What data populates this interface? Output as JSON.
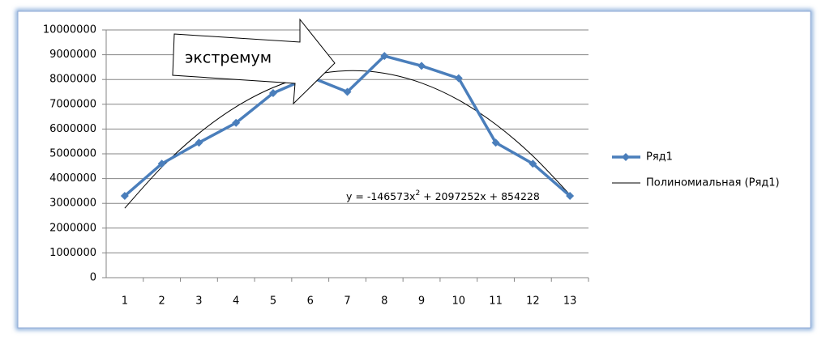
{
  "chart_data": {
    "type": "line",
    "categories": [
      "1",
      "2",
      "3",
      "4",
      "5",
      "6",
      "7",
      "8",
      "9",
      "10",
      "11",
      "12",
      "13"
    ],
    "series": [
      {
        "name": "Ряд1",
        "color": "#4a7ebb",
        "marker": "diamond",
        "values": [
          3300000,
          4600000,
          5450000,
          6250000,
          7450000,
          8100000,
          7500000,
          8950000,
          8550000,
          8050000,
          5450000,
          4600000,
          3300000
        ]
      },
      {
        "name": "Полиномиальная (Ряд1)",
        "color": "#000000",
        "marker": "none",
        "values": [
          2804907,
          4462440,
          5826827,
          6898068,
          7676163,
          8161112,
          8352915,
          8251572,
          7857083,
          7169448,
          6188667,
          4914740,
          3347667
        ]
      }
    ],
    "equation": [
      "y = -146573x",
      "2",
      " + 2097252x + 854228"
    ],
    "callout": "экстремум",
    "ylim": [
      0,
      10000000
    ],
    "yticks": [
      0,
      1000000,
      2000000,
      3000000,
      4000000,
      5000000,
      6000000,
      7000000,
      8000000,
      9000000,
      10000000
    ],
    "grid": true,
    "legend": "right"
  }
}
